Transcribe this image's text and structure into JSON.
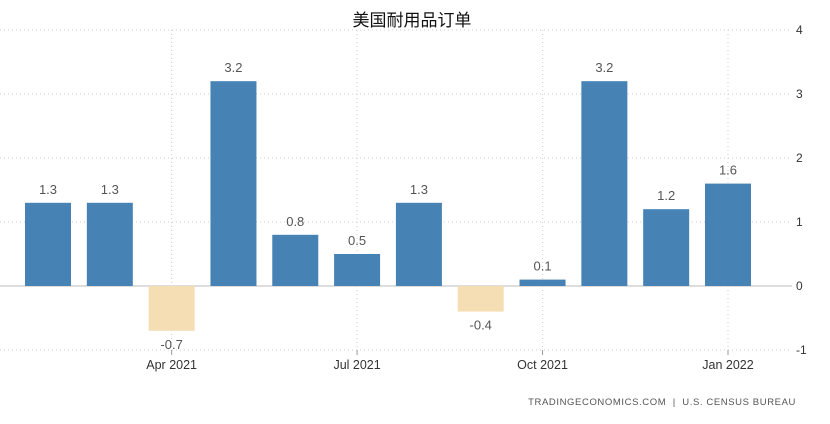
{
  "chart_data": {
    "type": "bar",
    "title": "美国耐用品订单",
    "months": [
      "2021-02",
      "2021-03",
      "2021-04",
      "2021-05",
      "2021-06",
      "2021-07",
      "2021-08",
      "2021-09",
      "2021-10",
      "2021-11",
      "2021-12",
      "2022-01"
    ],
    "values": [
      1.3,
      1.3,
      -0.7,
      3.2,
      0.8,
      0.5,
      1.3,
      -0.4,
      0.1,
      3.2,
      1.2,
      1.6
    ],
    "x_ticks": [
      {
        "label": "Apr 2021",
        "month": "2021-04"
      },
      {
        "label": "Jul 2021",
        "month": "2021-07"
      },
      {
        "label": "Oct 2021",
        "month": "2021-10"
      },
      {
        "label": "Jan 2022",
        "month": "2022-01"
      }
    ],
    "y_ticks": [
      4,
      3,
      2,
      1,
      0,
      -1
    ],
    "ylim": [
      -1,
      4
    ],
    "y_axis_side": "right",
    "grid": true,
    "grid_style": "dotted",
    "xlabel": "",
    "ylabel": "",
    "colors": {
      "positive": "#4682b4",
      "negative": "#f5deb3",
      "grid": "#cccccc",
      "zero_line": "#bbbbbb"
    },
    "source": "TRADINGECONOMICS.COM  |  U.S. CENSUS BUREAU"
  }
}
